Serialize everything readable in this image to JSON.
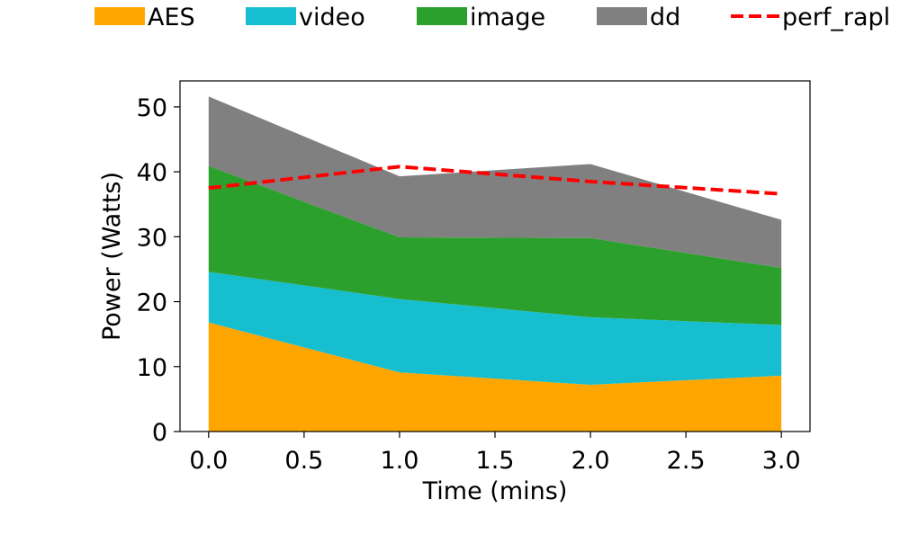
{
  "chart_data": {
    "type": "area",
    "stacked": true,
    "x": [
      0,
      1,
      2,
      3
    ],
    "series": [
      {
        "name": "AES",
        "values": [
          16.8,
          9.1,
          7.2,
          8.6
        ],
        "color": "#FFA500"
      },
      {
        "name": "video",
        "values": [
          7.8,
          11.3,
          10.4,
          7.8
        ],
        "color": "#17BECF"
      },
      {
        "name": "image",
        "values": [
          16.3,
          9.5,
          12.2,
          8.8
        ],
        "color": "#2CA02C"
      },
      {
        "name": "dd",
        "values": [
          10.7,
          9.4,
          11.4,
          7.4
        ],
        "color": "#808080"
      }
    ],
    "lines": [
      {
        "name": "perf_rapl",
        "values": [
          37.5,
          40.8,
          38.5,
          36.6
        ],
        "color": "#FF0000",
        "style": "dashed"
      }
    ],
    "xlabel": "Time (mins)",
    "ylabel": "Power (Watts)",
    "xlim": [
      -0.15,
      3.15
    ],
    "ylim": [
      0,
      54
    ],
    "xticks": [
      0,
      0.5,
      1,
      1.5,
      2,
      2.5,
      3
    ],
    "xtick_labels": [
      "0.0",
      "0.5",
      "1.0",
      "1.5",
      "2.0",
      "2.5",
      "3.0"
    ],
    "yticks": [
      0,
      10,
      20,
      30,
      40,
      50
    ],
    "ytick_labels": [
      "0",
      "10",
      "20",
      "30",
      "40",
      "50"
    ],
    "grid": false,
    "legend_position": "top"
  }
}
